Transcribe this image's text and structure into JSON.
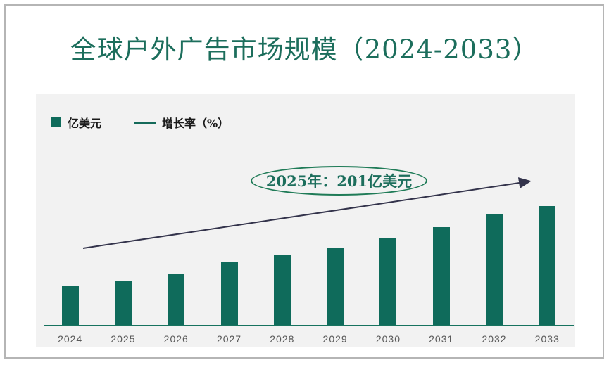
{
  "title": "全球户外广告市场规模（2024-2033）",
  "legend": {
    "items": [
      {
        "label": "亿美元",
        "swatch": "square",
        "color": "#0F6B5B"
      },
      {
        "label": "增长率（%）",
        "swatch": "line",
        "color": "#156A5A"
      }
    ]
  },
  "annotation": {
    "text": "2025年：201亿美元",
    "ellipse_color": "#1F7B57",
    "text_color": "#1C6E5C"
  },
  "chart_data": {
    "type": "bar",
    "title": "全球户外广告市场规模（2024-2033）",
    "categories": [
      "2024",
      "2025",
      "2026",
      "2027",
      "2028",
      "2029",
      "2030",
      "2031",
      "2032",
      "2033"
    ],
    "series": [
      {
        "name": "亿美元",
        "type": "bar",
        "color": "#0F6B5B",
        "values": [
          179,
          201,
          236,
          285,
          316,
          350,
          394,
          443,
          498,
          537
        ]
      }
    ],
    "labeled_points": [
      {
        "category": "2025",
        "value": 201,
        "label": "2025年：201亿美元"
      }
    ],
    "growth_line": {
      "name": "增长率（%）",
      "style": "straight-trend-arrow",
      "color": "#33334B"
    },
    "xlabel": "",
    "ylabel": "",
    "y_axis_visible": false,
    "grid": false,
    "legend_position": "top-left",
    "plot_background": "#F2F2F2",
    "axis_line_color": "#17735F",
    "x_label_color": "#595959",
    "title_color": "#1C6E5C"
  }
}
